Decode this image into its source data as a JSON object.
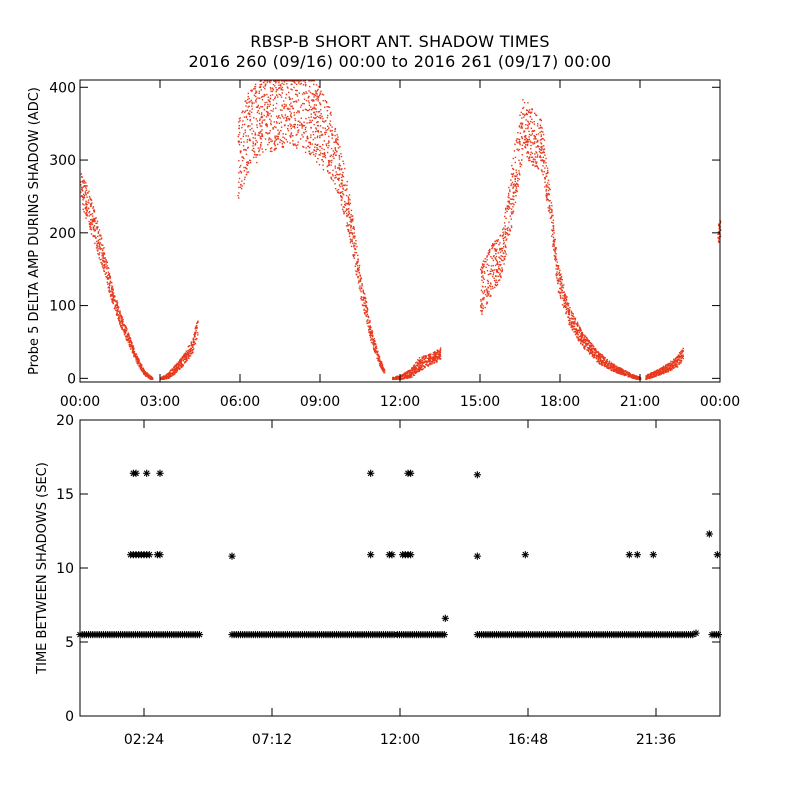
{
  "chart_data": [
    {
      "type": "scatter",
      "title": "RBSP-B SHORT ANT. SHADOW TIMES",
      "subtitle": "2016 260 (09/16) 00:00 to 2016 261 (09/17) 00:00",
      "ylabel": "Probe 5 DELTA AMP DURING SHADOW (ADC)",
      "xlabel": "",
      "x_unit": "hours",
      "xlim": [
        0,
        24
      ],
      "ylim": [
        -5,
        410
      ],
      "xtick_values": [
        0,
        3,
        6,
        9,
        12,
        15,
        18,
        21,
        24
      ],
      "xtick_labels": [
        "00:00",
        "03:00",
        "06:00",
        "09:00",
        "12:00",
        "15:00",
        "18:00",
        "21:00",
        "00:00"
      ],
      "ytick_values": [
        0,
        100,
        200,
        300,
        400
      ],
      "ytick_labels": [
        "0",
        "100",
        "200",
        "300",
        "400"
      ],
      "color": "#e8391d",
      "series": [
        {
          "name": "segment-1",
          "x": [
            0.0,
            0.3,
            0.6,
            0.9,
            1.2,
            1.5,
            1.8,
            2.1,
            2.4,
            2.7
          ],
          "y": [
            265,
            235,
            200,
            160,
            115,
            82,
            55,
            28,
            8,
            0
          ],
          "spread": [
            22,
            25,
            22,
            18,
            12,
            10,
            8,
            6,
            3,
            2
          ]
        },
        {
          "name": "segment-2",
          "x": [
            3.0,
            3.3,
            3.6,
            3.9,
            4.2,
            4.4
          ],
          "y": [
            0,
            5,
            15,
            28,
            45,
            72
          ],
          "spread": [
            2,
            4,
            6,
            8,
            10,
            12
          ]
        },
        {
          "name": "segment-3",
          "x": [
            5.9,
            6.3,
            6.8,
            7.3,
            7.8,
            8.3,
            8.8,
            9.3,
            9.7,
            10.1,
            10.5,
            10.9,
            11.2,
            11.4
          ],
          "y": [
            300,
            340,
            360,
            370,
            375,
            370,
            355,
            330,
            290,
            220,
            130,
            60,
            25,
            10
          ],
          "spread": [
            55,
            55,
            55,
            55,
            55,
            55,
            55,
            50,
            40,
            30,
            18,
            10,
            6,
            3
          ]
        },
        {
          "name": "segment-4",
          "x": [
            11.7,
            12.0,
            12.4,
            12.7,
            13.0,
            13.3,
            13.5
          ],
          "y": [
            0,
            2,
            8,
            20,
            25,
            30,
            35
          ],
          "spread": [
            2,
            3,
            6,
            10,
            8,
            8,
            8
          ]
        },
        {
          "name": "segment-5",
          "x": [
            15.0,
            15.4,
            15.8,
            16.2,
            16.6,
            17.0,
            17.3,
            17.6,
            17.9,
            18.3,
            18.8,
            19.4,
            20.0,
            20.6,
            21.0
          ],
          "y": [
            120,
            150,
            170,
            260,
            350,
            330,
            320,
            240,
            140,
            90,
            55,
            30,
            15,
            5,
            0
          ],
          "spread": [
            35,
            35,
            30,
            45,
            40,
            40,
            35,
            25,
            20,
            14,
            10,
            8,
            5,
            3,
            2
          ]
        },
        {
          "name": "segment-6",
          "x": [
            21.2,
            21.6,
            22.0,
            22.4,
            22.6
          ],
          "y": [
            2,
            8,
            15,
            25,
            35
          ],
          "spread": [
            3,
            4,
            6,
            8,
            10
          ]
        },
        {
          "name": "segment-7",
          "x": [
            23.9,
            24.0
          ],
          "y": [
            195,
            210
          ],
          "spread": [
            15,
            15
          ]
        }
      ]
    },
    {
      "type": "scatter",
      "ylabel": "TIME BETWEEN SHADOWS (SEC)",
      "xlabel": "",
      "x_unit": "hours",
      "xlim": [
        0,
        24
      ],
      "ylim": [
        0,
        20
      ],
      "xtick_values": [
        2.4,
        7.2,
        12.0,
        16.8,
        21.6
      ],
      "xtick_labels": [
        "02:24",
        "07:12",
        "12:00",
        "16:48",
        "21:36"
      ],
      "ytick_values": [
        0,
        5,
        10,
        15,
        20
      ],
      "ytick_labels": [
        "0",
        "5",
        "10",
        "15",
        "20"
      ],
      "marker": "*",
      "color": "#000000",
      "band_5_5": {
        "y": 5.5,
        "ranges": [
          [
            0.0,
            4.5
          ],
          [
            5.7,
            11.8
          ],
          [
            11.9,
            13.7
          ],
          [
            14.9,
            23.0
          ],
          [
            23.7,
            24.0
          ]
        ]
      },
      "points": [
        {
          "x": 2.0,
          "y": 16.4
        },
        {
          "x": 2.1,
          "y": 16.4
        },
        {
          "x": 2.5,
          "y": 16.4
        },
        {
          "x": 3.0,
          "y": 16.4
        },
        {
          "x": 10.9,
          "y": 16.4
        },
        {
          "x": 12.3,
          "y": 16.4
        },
        {
          "x": 12.4,
          "y": 16.4
        },
        {
          "x": 14.9,
          "y": 16.3
        },
        {
          "x": 1.9,
          "y": 10.9
        },
        {
          "x": 2.0,
          "y": 10.9
        },
        {
          "x": 2.1,
          "y": 10.9
        },
        {
          "x": 2.2,
          "y": 10.9
        },
        {
          "x": 2.3,
          "y": 10.9
        },
        {
          "x": 2.4,
          "y": 10.9
        },
        {
          "x": 2.5,
          "y": 10.9
        },
        {
          "x": 2.6,
          "y": 10.9
        },
        {
          "x": 2.9,
          "y": 10.9
        },
        {
          "x": 3.0,
          "y": 10.9
        },
        {
          "x": 5.7,
          "y": 10.8
        },
        {
          "x": 10.9,
          "y": 10.9
        },
        {
          "x": 11.6,
          "y": 10.9
        },
        {
          "x": 11.7,
          "y": 10.9
        },
        {
          "x": 12.1,
          "y": 10.9
        },
        {
          "x": 12.2,
          "y": 10.9
        },
        {
          "x": 12.3,
          "y": 10.9
        },
        {
          "x": 12.4,
          "y": 10.9
        },
        {
          "x": 14.9,
          "y": 10.8
        },
        {
          "x": 16.7,
          "y": 10.9
        },
        {
          "x": 20.6,
          "y": 10.9
        },
        {
          "x": 20.9,
          "y": 10.9
        },
        {
          "x": 21.5,
          "y": 10.9
        },
        {
          "x": 23.9,
          "y": 10.9
        },
        {
          "x": 13.7,
          "y": 6.6
        },
        {
          "x": 23.6,
          "y": 12.3
        },
        {
          "x": 23.1,
          "y": 5.6
        }
      ]
    }
  ]
}
